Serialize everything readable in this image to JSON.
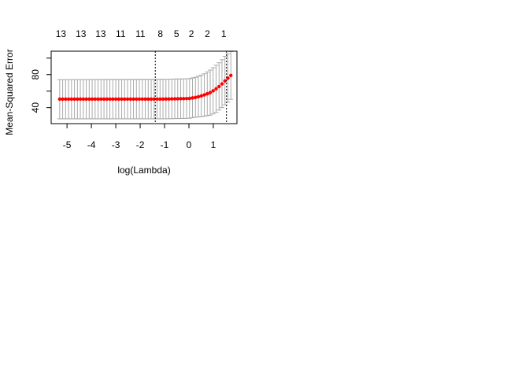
{
  "chart_data": {
    "type": "scatter",
    "xlabel": "log(Lambda)",
    "ylabel": "Mean-Squared Error",
    "xlim": [
      -5.65,
      1.97
    ],
    "ylim": [
      20.6,
      108.4
    ],
    "x_ticks": [
      -5,
      -4,
      -3,
      -2,
      -1,
      0,
      1
    ],
    "y_ticks": [
      40,
      60,
      80,
      100
    ],
    "y_tick_labels": [
      "40",
      "",
      "80",
      ""
    ],
    "top_axis_labels": [
      {
        "x": -5.25,
        "label": "13"
      },
      {
        "x": -4.43,
        "label": "13"
      },
      {
        "x": -3.62,
        "label": "13"
      },
      {
        "x": -2.8,
        "label": "11"
      },
      {
        "x": -1.99,
        "label": "11"
      },
      {
        "x": -1.17,
        "label": "8"
      },
      {
        "x": -0.51,
        "label": "5"
      },
      {
        "x": 0.1,
        "label": "2"
      },
      {
        "x": 0.76,
        "label": "2"
      },
      {
        "x": 1.43,
        "label": "1"
      }
    ],
    "vlines": [
      -1.38,
      1.54
    ],
    "series": [
      {
        "color": "#FF0000",
        "error_bar_color": "#A9A9A9",
        "x_start": -5.3,
        "x_end": 1.72,
        "n": 59,
        "cv_mean_note": "smooth mean curve, approx constant 50.3 until log(Lambda)=0, rising to about 79 at log(Lambda)=1.72",
        "keypoints_x": [
          -5.3,
          -1.0,
          0.0,
          0.3,
          0.6,
          0.9,
          1.1,
          1.3,
          1.5,
          1.72
        ],
        "keypoints_y": [
          50.3,
          50.4,
          51.0,
          52.5,
          55.0,
          58.5,
          62.5,
          67.0,
          73.0,
          79.0
        ],
        "keypoints_lower": [
          26.4,
          26.4,
          27.0,
          28.5,
          29.5,
          31.0,
          34.0,
          38.5,
          44.0,
          50.0
        ],
        "keypoints_upper": [
          74.0,
          74.4,
          75.0,
          77.0,
          80.5,
          86.0,
          91.0,
          96.0,
          103.0,
          108.0
        ]
      }
    ]
  }
}
